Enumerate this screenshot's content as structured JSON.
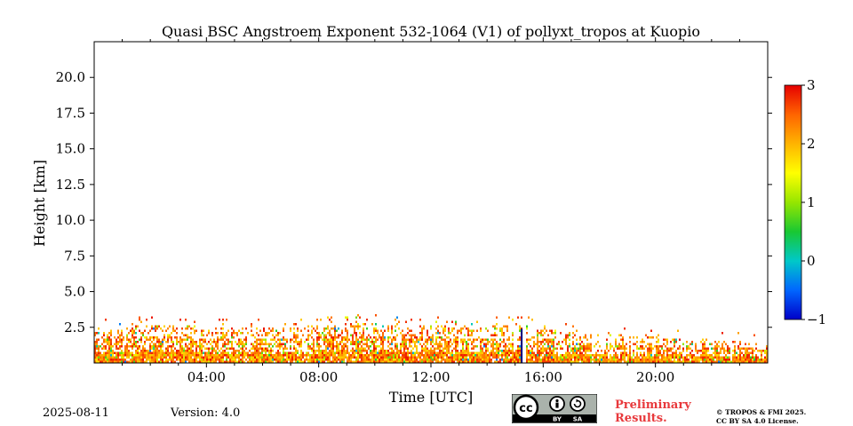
{
  "chart_data": {
    "type": "heatmap",
    "title": "Quasi BSC Angstroem Exponent 532-1064 (V1) of pollyxt_tropos at Kuopio",
    "xlabel": "Time [UTC]",
    "ylabel": "Height [km]",
    "xlim_hours": [
      0,
      24
    ],
    "ylim_km": [
      0,
      22.5
    ],
    "x_ticks": [
      {
        "hour": 4,
        "label": "04:00"
      },
      {
        "hour": 8,
        "label": "08:00"
      },
      {
        "hour": 12,
        "label": "12:00"
      },
      {
        "hour": 16,
        "label": "16:00"
      },
      {
        "hour": 20,
        "label": "20:00"
      }
    ],
    "y_ticks": [
      {
        "value": 2.5,
        "label": "2.5"
      },
      {
        "value": 5.0,
        "label": "5.0"
      },
      {
        "value": 7.5,
        "label": "7.5"
      },
      {
        "value": 10.0,
        "label": "10.0"
      },
      {
        "value": 12.5,
        "label": "12.5"
      },
      {
        "value": 15.0,
        "label": "15.0"
      },
      {
        "value": 17.5,
        "label": "17.5"
      },
      {
        "value": 20.0,
        "label": "20.0"
      }
    ],
    "colorbar": {
      "range": [
        -1,
        3
      ],
      "ticks": [
        {
          "value": 3,
          "label": "3"
        },
        {
          "value": 2,
          "label": "2"
        },
        {
          "value": 1,
          "label": "1"
        },
        {
          "value": 0,
          "label": "0"
        },
        {
          "value": -1,
          "label": "−1"
        }
      ],
      "colors": [
        "#0000c8",
        "#0066ff",
        "#00c8c8",
        "#19c832",
        "#96e600",
        "#ffff00",
        "#ffb400",
        "#ff6400",
        "#e60000"
      ]
    },
    "signal_top_km": [
      {
        "hour": 0.0,
        "km": 2.6
      },
      {
        "hour": 1.0,
        "km": 2.6
      },
      {
        "hour": 2.0,
        "km": 2.7
      },
      {
        "hour": 3.0,
        "km": 2.7
      },
      {
        "hour": 4.0,
        "km": 2.6
      },
      {
        "hour": 5.0,
        "km": 2.5
      },
      {
        "hour": 6.0,
        "km": 2.5
      },
      {
        "hour": 7.0,
        "km": 2.6
      },
      {
        "hour": 8.0,
        "km": 2.7
      },
      {
        "hour": 9.0,
        "km": 2.8
      },
      {
        "hour": 10.0,
        "km": 2.8
      },
      {
        "hour": 11.0,
        "km": 2.6
      },
      {
        "hour": 12.0,
        "km": 2.7
      },
      {
        "hour": 13.0,
        "km": 2.6
      },
      {
        "hour": 14.0,
        "km": 2.6
      },
      {
        "hour": 15.0,
        "km": 2.8
      },
      {
        "hour": 16.0,
        "km": 2.5
      },
      {
        "hour": 17.0,
        "km": 2.2
      },
      {
        "hour": 18.0,
        "km": 2.1
      },
      {
        "hour": 19.0,
        "km": 2.0
      },
      {
        "hour": 20.0,
        "km": 1.9
      },
      {
        "hour": 21.0,
        "km": 1.7
      },
      {
        "hour": 22.0,
        "km": 1.6
      },
      {
        "hour": 23.0,
        "km": 1.6
      },
      {
        "hour": 24.0,
        "km": 1.5
      }
    ],
    "typical_exponent_near_ground": 2.3,
    "gap_hours": [
      15.2,
      15.35
    ]
  },
  "footer": {
    "date": "2025-08-11",
    "version": "Version: 4.0",
    "license_badge": {
      "cc": "cc",
      "by": "BY",
      "sa": "SA"
    },
    "preliminary_line1": "Preliminary",
    "preliminary_line2": "Results.",
    "copyright_line1": "© TROPOS & FMI 2025.",
    "copyright_line2": "CC BY SA 4.0 License."
  }
}
